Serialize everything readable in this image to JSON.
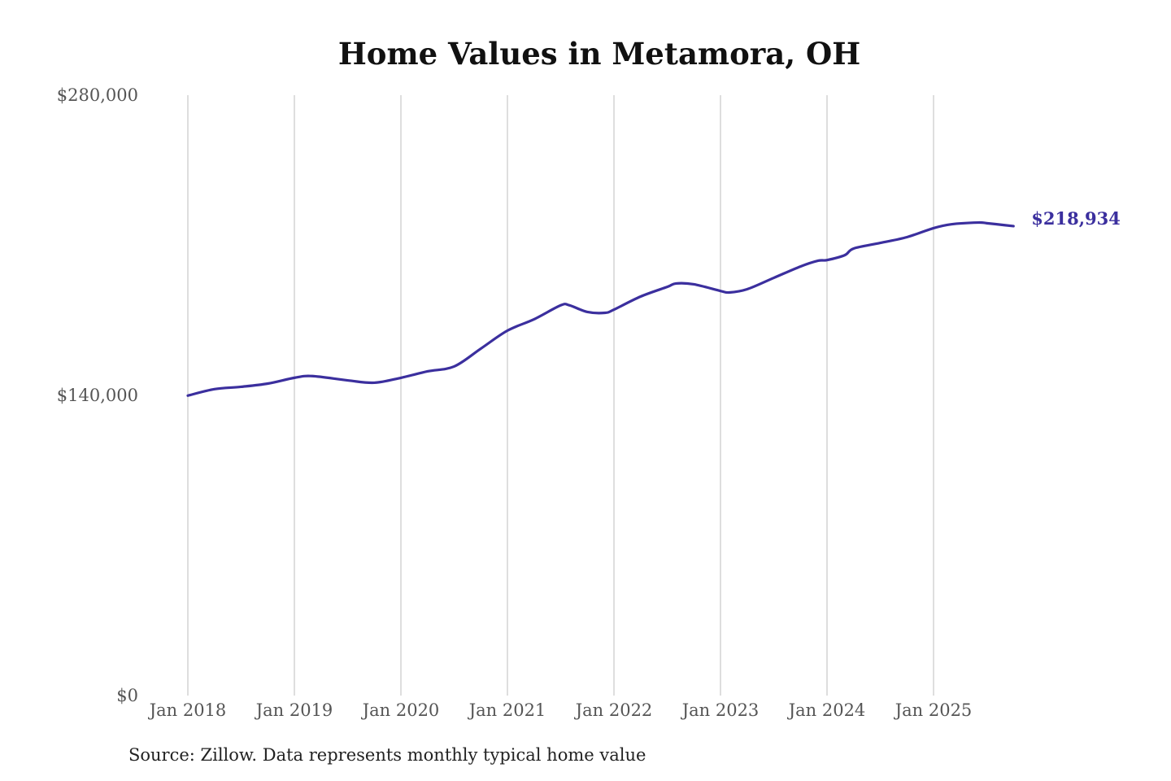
{
  "chart_data": {
    "type": "line",
    "title": "Home Values in Metamora, OH",
    "source": "Source: Zillow. Data represents monthly typical home value",
    "xlabel": "",
    "ylabel": "",
    "ylim": [
      0,
      280000
    ],
    "y_ticks": [
      "$0",
      "$140,000",
      "$280,000"
    ],
    "y_tick_values": [
      0,
      140000,
      280000
    ],
    "x_ticks": [
      "Jan 2018",
      "Jan 2019",
      "Jan 2020",
      "Jan 2021",
      "Jan 2022",
      "Jan 2023",
      "Jan 2024",
      "Jan 2025"
    ],
    "x_tick_dates": [
      "2018-01",
      "2019-01",
      "2020-01",
      "2021-01",
      "2022-01",
      "2023-01",
      "2024-01",
      "2025-01"
    ],
    "grid": "vertical",
    "line_color": "#3b2f9e",
    "end_label": "$218,934",
    "series": [
      {
        "x": [
          "2018-01",
          "2018-04",
          "2018-07",
          "2018-10",
          "2019-01",
          "2019-03",
          "2019-07",
          "2019-10",
          "2020-01",
          "2020-04",
          "2020-07",
          "2020-10",
          "2021-01",
          "2021-04",
          "2021-07",
          "2021-08",
          "2021-10",
          "2021-12",
          "2022-01",
          "2022-04",
          "2022-07",
          "2022-08",
          "2022-10",
          "2023-01",
          "2023-02",
          "2023-04",
          "2023-07",
          "2023-10",
          "2023-12",
          "2024-01",
          "2024-03",
          "2024-04",
          "2024-07",
          "2024-10",
          "2025-01",
          "2025-03",
          "2025-06",
          "2025-07",
          "2025-09",
          "2025-10"
        ],
        "values": [
          139900,
          142900,
          144000,
          145500,
          148200,
          149000,
          147000,
          145900,
          148200,
          151200,
          153500,
          161800,
          170200,
          175500,
          182000,
          182000,
          178900,
          178500,
          180000,
          186100,
          190600,
          192200,
          191800,
          188700,
          188000,
          189500,
          194800,
          200100,
          202800,
          203100,
          205400,
          208500,
          211100,
          213800,
          218000,
          219800,
          220600,
          220300,
          219400,
          218934
        ]
      }
    ]
  }
}
